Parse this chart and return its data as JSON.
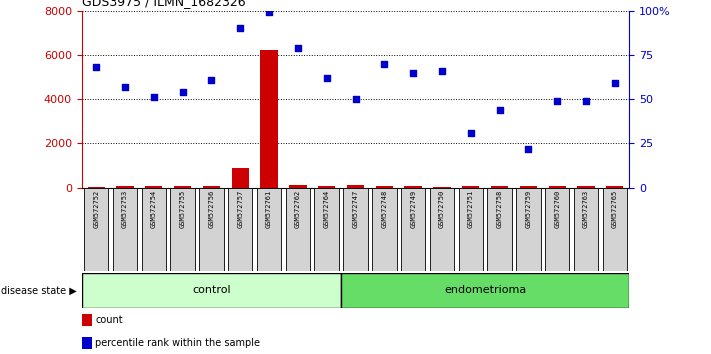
{
  "title": "GDS3975 / ILMN_1682326",
  "samples": [
    "GSM572752",
    "GSM572753",
    "GSM572754",
    "GSM572755",
    "GSM572756",
    "GSM572757",
    "GSM572761",
    "GSM572762",
    "GSM572764",
    "GSM572747",
    "GSM572748",
    "GSM572749",
    "GSM572750",
    "GSM572751",
    "GSM572758",
    "GSM572759",
    "GSM572760",
    "GSM572763",
    "GSM572765"
  ],
  "count_values": [
    50,
    60,
    70,
    60,
    80,
    900,
    6200,
    100,
    80,
    130,
    70,
    60,
    50,
    60,
    70,
    90,
    60,
    60,
    80
  ],
  "percentile_values": [
    68,
    57,
    51,
    54,
    61,
    90,
    99,
    79,
    62,
    50,
    70,
    65,
    66,
    31,
    44,
    22,
    49,
    49,
    59
  ],
  "control_count": 9,
  "endometrioma_count": 10,
  "ylim_left": [
    0,
    8000
  ],
  "ylim_right": [
    0,
    100
  ],
  "yticks_left": [
    0,
    2000,
    4000,
    6000,
    8000
  ],
  "yticks_right": [
    0,
    25,
    50,
    75,
    100
  ],
  "bar_color": "#cc0000",
  "scatter_color": "#0000cc",
  "control_color": "#ccffcc",
  "endometrioma_color": "#66dd66",
  "bg_color": "#d3d3d3",
  "left_axis_color": "#cc0000",
  "right_axis_color": "#0000cc"
}
